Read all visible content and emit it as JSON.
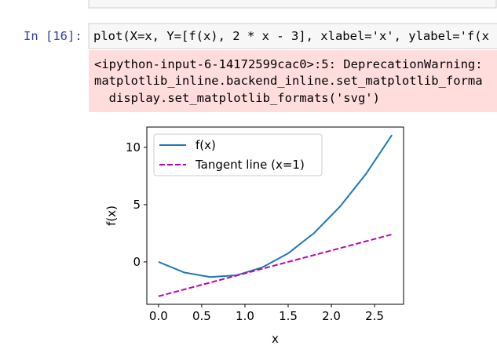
{
  "cell": {
    "prompt": "In [16]:",
    "code": "plot(X=x, Y=[f(x), 2 * x - 3], xlabel='x', ylabel='f(x",
    "stderr": [
      "<ipython-input-6-14172599cac0>:5: DeprecationWarning:",
      "matplotlib_inline.backend_inline.set_matplotlib_forma",
      "  display.set_matplotlib_formats('svg')"
    ]
  },
  "chart_data": {
    "type": "line",
    "x": [
      0,
      0.3,
      0.6,
      0.9,
      1.2,
      1.5,
      1.8,
      2.1,
      2.4,
      2.7
    ],
    "series": [
      {
        "name": "f(x)",
        "color": "#1f77b4",
        "dash": false,
        "values": [
          0,
          -0.93,
          -1.32,
          -1.17,
          -0.48,
          0.75,
          2.52,
          4.83,
          7.68,
          11.07
        ]
      },
      {
        "name": "Tangent line (x=1)",
        "color": "#bf00bf",
        "dash": true,
        "values": [
          -3,
          -2.4,
          -1.8,
          -1.2,
          -0.6,
          0,
          0.6,
          1.2,
          1.8,
          2.4
        ]
      }
    ],
    "xlabel": "x",
    "ylabel": "f(x)",
    "xlim": [
      -0.135,
      2.835
    ],
    "ylim": [
      -3.7,
      11.77
    ],
    "xticks": [
      {
        "value": 0,
        "label": "0.0"
      },
      0.5,
      {
        "value": 1,
        "label": "1.0"
      },
      1.5,
      {
        "value": 2,
        "label": "2.0"
      },
      2.5
    ],
    "yticks": [
      0,
      5,
      10
    ],
    "legend": "upper-left"
  }
}
